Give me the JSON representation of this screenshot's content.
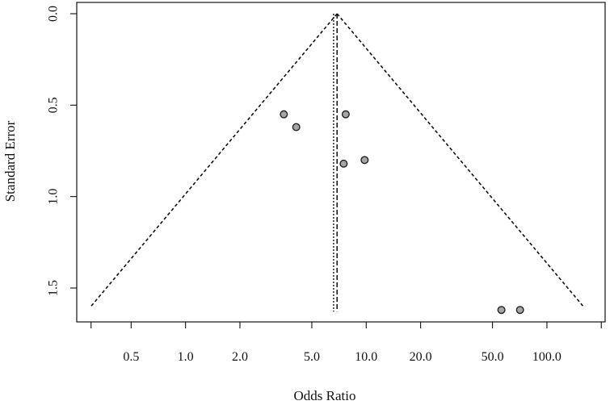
{
  "chart_data": {
    "type": "scatter",
    "subtype": "funnel-plot",
    "title": "",
    "xlabel": "Odds Ratio",
    "ylabel": "Standard Error",
    "x_scale": "log",
    "y_reversed": true,
    "xlim": [
      0.25,
      210
    ],
    "ylim": [
      0.0,
      1.68
    ],
    "x_ticks": [
      0.5,
      1.0,
      2.0,
      5.0,
      10.0,
      20.0,
      50.0,
      100.0
    ],
    "x_tick_labels": [
      "0.5",
      "1.0",
      "2.0",
      "5.0",
      "10.0",
      "20.0",
      "50.0",
      "100.0"
    ],
    "y_ticks": [
      0.0,
      0.5,
      1.0,
      1.5
    ],
    "y_tick_labels": [
      "0.0",
      "0.5",
      "1.0",
      "1.5"
    ],
    "pooled_estimate": 6.9,
    "reference_line": 6.6,
    "funnel_max_se": 1.6,
    "points": [
      {
        "x": 3.5,
        "y": 0.55
      },
      {
        "x": 4.1,
        "y": 0.62
      },
      {
        "x": 7.7,
        "y": 0.55
      },
      {
        "x": 7.5,
        "y": 0.82
      },
      {
        "x": 9.8,
        "y": 0.8
      },
      {
        "x": 56.0,
        "y": 1.62
      },
      {
        "x": 71.0,
        "y": 1.62
      }
    ],
    "point_fill": "#a6a6a6",
    "point_stroke": "#222222",
    "line_color": "#111111",
    "grid": false,
    "legend": "none"
  }
}
